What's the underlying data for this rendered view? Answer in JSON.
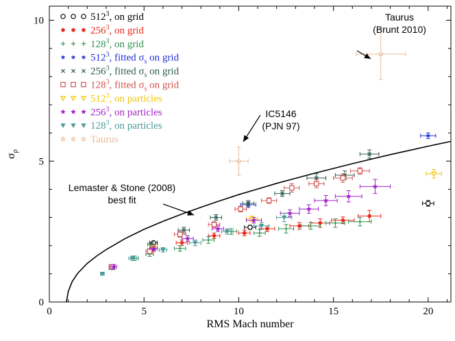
{
  "chart_data": {
    "type": "scatter",
    "xlabel": "RMS Mach number",
    "ylabel": "σ",
    "ylabel_sub": "ρ",
    "xlim": [
      0,
      21.2
    ],
    "ylim": [
      0,
      10.5
    ],
    "x_ticks": [
      0,
      5,
      10,
      15,
      20
    ],
    "y_ticks": [
      0,
      5,
      10
    ],
    "x_tick_labels": [
      "0",
      "5",
      "10",
      "15",
      "20"
    ],
    "y_tick_labels": [
      "0",
      "5",
      "10"
    ],
    "legend_position": "top-left",
    "grid": false,
    "fit_curve": {
      "name": "Lemaster & Stone (2008) best fit",
      "x": [
        0.9,
        1.0,
        1.2,
        1.5,
        2.0,
        2.5,
        3,
        4,
        5,
        6,
        7,
        8,
        9,
        10,
        11,
        12,
        13,
        14,
        15,
        16,
        17,
        18,
        19,
        20,
        21.2
      ],
      "y": [
        0.0,
        0.37,
        0.72,
        1.02,
        1.37,
        1.63,
        1.86,
        2.25,
        2.58,
        2.86,
        3.12,
        3.36,
        3.59,
        3.81,
        4.01,
        4.21,
        4.39,
        4.57,
        4.74,
        4.91,
        5.07,
        5.23,
        5.38,
        5.53,
        5.7
      ]
    },
    "series": [
      {
        "label_main": "512",
        "label_sup": "3",
        "label_rest": ", on grid",
        "text_color": "#000000",
        "color": "#000000",
        "marker": "open-circle",
        "points": [
          [
            5.5,
            2.1,
            0.2,
            0.05
          ],
          [
            10.6,
            2.65,
            0.3,
            0.07
          ],
          [
            20.0,
            3.5,
            0.3,
            0.1
          ]
        ]
      },
      {
        "label_main": "256",
        "label_sup": "3",
        "label_rest": ", on grid",
        "text_color": "#e8291c",
        "color": "#e8291c",
        "marker": "filled-circle",
        "points": [
          [
            5.4,
            1.85,
            0.2,
            0.08
          ],
          [
            7.0,
            2.1,
            0.3,
            0.1
          ],
          [
            8.7,
            2.35,
            0.3,
            0.1
          ],
          [
            10.3,
            2.45,
            0.3,
            0.1
          ],
          [
            11.5,
            2.6,
            0.4,
            0.1
          ],
          [
            13.2,
            2.7,
            0.5,
            0.12
          ],
          [
            14.3,
            2.8,
            0.5,
            0.15
          ],
          [
            15.5,
            2.9,
            0.6,
            0.12
          ],
          [
            16.9,
            3.05,
            0.6,
            0.2
          ]
        ]
      },
      {
        "label_main": "128",
        "label_sup": "3",
        "label_rest": ", on grid",
        "text_color": "#2f8f4e",
        "color": "#2f8f4e",
        "marker": "plus",
        "points": [
          [
            3.3,
            1.2,
            0.15,
            0.05
          ],
          [
            4.5,
            1.55,
            0.2,
            0.08
          ],
          [
            5.3,
            1.7,
            0.2,
            0.08
          ],
          [
            6.9,
            1.9,
            0.3,
            0.1
          ],
          [
            8.4,
            2.2,
            0.3,
            0.12
          ],
          [
            9.6,
            2.5,
            0.3,
            0.1
          ],
          [
            11.1,
            2.45,
            0.3,
            0.12
          ],
          [
            12.5,
            2.6,
            0.4,
            0.15
          ],
          [
            13.8,
            2.7,
            0.5,
            0.12
          ],
          [
            15.1,
            2.8,
            0.5,
            0.15
          ],
          [
            16.4,
            2.85,
            0.6,
            0.15
          ]
        ]
      },
      {
        "label_main": "512",
        "label_sup": "3",
        "label_rest": ", fitted σ",
        "label_sub": "s",
        "label_tail": " on grid",
        "text_color": "#1f2fd6",
        "color": "#1f2fd6",
        "marker": "asterisk",
        "points": [
          [
            5.5,
            1.9,
            0.2,
            0.05
          ],
          [
            10.5,
            3.45,
            0.4,
            0.1
          ],
          [
            20.0,
            5.9,
            0.4,
            0.1
          ]
        ]
      },
      {
        "label_main": "256",
        "label_sup": "3",
        "label_rest": ", fitted σ",
        "label_sub": "s",
        "label_tail": " on grid",
        "text_color": "#2d5a4c",
        "color": "#2d5a4c",
        "marker": "cross",
        "points": [
          [
            5.4,
            2.05,
            0.2,
            0.08
          ],
          [
            7.1,
            2.55,
            0.3,
            0.1
          ],
          [
            8.8,
            3.0,
            0.3,
            0.1
          ],
          [
            10.5,
            3.5,
            0.3,
            0.1
          ],
          [
            12.3,
            3.85,
            0.4,
            0.1
          ],
          [
            14.1,
            4.4,
            0.5,
            0.15
          ],
          [
            15.6,
            4.5,
            0.5,
            0.15
          ],
          [
            16.9,
            5.25,
            0.5,
            0.15
          ]
        ]
      },
      {
        "label_main": "128",
        "label_sup": "3",
        "label_rest": ", fitted σ",
        "label_sub": "s",
        "label_tail": " on grid",
        "text_color": "#d0534f",
        "color": "#d0534f",
        "marker": "open-square",
        "points": [
          [
            3.3,
            1.25,
            0.15,
            0.05
          ],
          [
            5.3,
            1.8,
            0.2,
            0.08
          ],
          [
            6.9,
            2.4,
            0.3,
            0.1
          ],
          [
            8.7,
            2.75,
            0.3,
            0.1
          ],
          [
            10.1,
            3.3,
            0.3,
            0.1
          ],
          [
            11.6,
            3.6,
            0.4,
            0.1
          ],
          [
            12.8,
            4.05,
            0.4,
            0.15
          ],
          [
            14.1,
            4.2,
            0.4,
            0.15
          ],
          [
            15.5,
            4.4,
            0.5,
            0.15
          ],
          [
            16.4,
            4.65,
            0.5,
            0.12
          ]
        ]
      },
      {
        "label_main": "512",
        "label_sup": "3",
        "label_rest": ", on particles",
        "text_color": "#f2c500",
        "color": "#f2c500",
        "marker": "open-triangle-down",
        "points": [
          [
            5.5,
            1.95,
            0.2,
            0.05
          ],
          [
            10.7,
            2.95,
            0.3,
            0.1
          ],
          [
            20.3,
            4.55,
            0.4,
            0.15
          ]
        ]
      },
      {
        "label_main": "256",
        "label_sup": "3",
        "label_rest": ", on particles",
        "text_color": "#a020c8",
        "color": "#a020c8",
        "marker": "filled-star",
        "points": [
          [
            3.4,
            1.25,
            0.15,
            0.08
          ],
          [
            5.5,
            1.9,
            0.2,
            0.08
          ],
          [
            7.3,
            2.25,
            0.3,
            0.1
          ],
          [
            8.9,
            2.6,
            0.3,
            0.1
          ],
          [
            10.8,
            2.9,
            0.4,
            0.1
          ],
          [
            12.7,
            3.15,
            0.5,
            0.12
          ],
          [
            13.7,
            3.3,
            0.5,
            0.15
          ],
          [
            14.6,
            3.6,
            0.6,
            0.18
          ],
          [
            15.8,
            3.75,
            0.7,
            0.2
          ],
          [
            17.2,
            4.1,
            0.8,
            0.25
          ]
        ]
      },
      {
        "label_main": "128",
        "label_sup": "3",
        "label_rest": ", on particles",
        "text_color": "#4a9a9a",
        "color": "#4a9a9a",
        "marker": "filled-triangle-down",
        "points": [
          [
            2.8,
            1.0,
            0.1,
            0.05
          ],
          [
            4.4,
            1.55,
            0.2,
            0.08
          ],
          [
            6.0,
            1.85,
            0.2,
            0.08
          ],
          [
            7.7,
            2.1,
            0.3,
            0.1
          ],
          [
            9.4,
            2.5,
            0.3,
            0.1
          ],
          [
            11.2,
            2.7,
            0.4,
            0.12
          ],
          [
            12.4,
            3.0,
            0.4,
            0.15
          ]
        ]
      },
      {
        "label_main": "Taurus",
        "label_sup": "",
        "label_rest": "",
        "text_color": "#e8bc9a",
        "color": "#e8bc9a",
        "marker": "open-star",
        "points": [
          [
            17.5,
            8.8,
            1.3,
            0.9
          ],
          [
            10.0,
            5.0,
            0.5,
            0.5
          ]
        ]
      }
    ],
    "annotations": [
      {
        "lines": [
          "Taurus",
          "(Brunt 2010)"
        ],
        "points_to": [
          17.2,
          8.9
        ]
      },
      {
        "lines": [
          "IC5146",
          "(PJN 97)"
        ],
        "points_to": [
          10.0,
          5.45
        ]
      },
      {
        "lines": [
          "Lemaster & Stone (2008)",
          "best fit"
        ],
        "points_to": [
          7.9,
          3.0
        ]
      }
    ]
  }
}
